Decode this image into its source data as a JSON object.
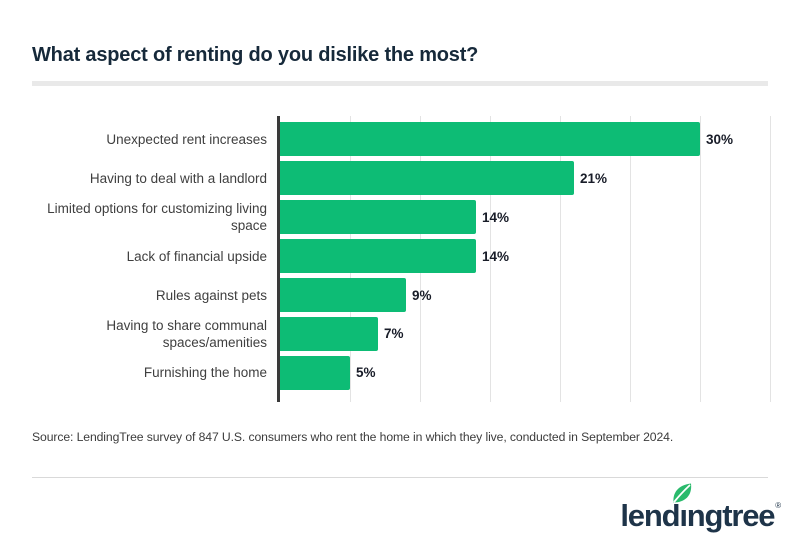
{
  "page": {
    "title": "What aspect of renting do you dislike the most?",
    "source": "Source: LendingTree survey of 847 U.S. consumers who rent the home in which they live, conducted in September 2024."
  },
  "chart_data": {
    "type": "bar",
    "orientation": "horizontal",
    "title": "What aspect of renting do you dislike the most?",
    "categories": [
      "Unexpected rent increases",
      "Having to deal with a landlord",
      "Limited options for customizing living space",
      "Lack of financial upside",
      "Rules against pets",
      "Having to share communal spaces/amenities",
      "Furnishing the home"
    ],
    "values": [
      30,
      21,
      14,
      14,
      9,
      7,
      5
    ],
    "value_labels": [
      "30%",
      "21%",
      "14%",
      "14%",
      "9%",
      "7%",
      "5%"
    ],
    "xlabel": "",
    "ylabel": "",
    "xlim": [
      0,
      35
    ],
    "gridline_step": 5,
    "grid": "vertical-lines-on",
    "legend": "none",
    "data_labels": "outside-end"
  },
  "colors": {
    "bar": "#0dbc75",
    "axis": "#3a3a3a",
    "grid": "#e3e3e3",
    "title-color": "#16293a",
    "label-color": "#3f3f3f",
    "value-color": "#181c28",
    "source-color": "#3c3c3c",
    "logo-navy": "#1e3449",
    "leaf-green": "#2aba6c",
    "divider-thick": "#e9e9e9",
    "divider-thin": "#d9d9d9"
  },
  "logo": {
    "brand": "lendingtree",
    "text_left": "lend",
    "text_dotless_i": "ı",
    "text_right": "ngtree",
    "registered_mark": "®",
    "leaf_icon": "leaf-icon"
  }
}
